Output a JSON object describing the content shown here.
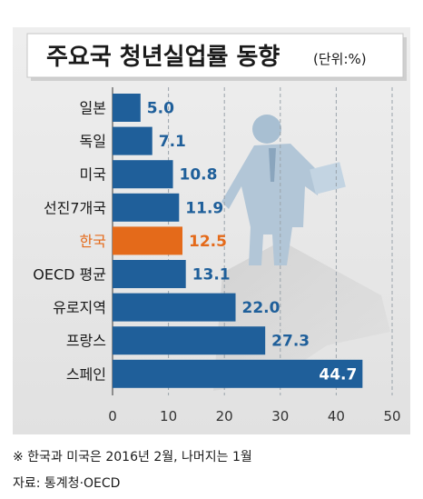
{
  "chart_data": {
    "type": "bar",
    "orientation": "horizontal",
    "title": "주요국 청년실업률 동향",
    "unit": "(단위:%)",
    "categories": [
      "일본",
      "독일",
      "미국",
      "선진7개국",
      "한국",
      "OECD 평균",
      "유로지역",
      "프랑스",
      "스페인"
    ],
    "values": [
      5.0,
      7.1,
      10.8,
      11.9,
      12.5,
      13.1,
      22.0,
      27.3,
      44.7
    ],
    "value_labels": [
      "5.0",
      "7.1",
      "10.8",
      "11.9",
      "12.5",
      "13.1",
      "22.0",
      "27.3",
      "44.7"
    ],
    "highlight_category": "한국",
    "xlim": [
      0,
      50
    ],
    "x_ticks": [
      0,
      10,
      20,
      30,
      40,
      50
    ],
    "x_tick_labels": [
      "0",
      "10",
      "20",
      "30",
      "40",
      "50"
    ],
    "grid": "dashed vertical",
    "colors": {
      "bar": "#1f5f9a",
      "highlight": "#e46a1a",
      "value_label": "#1f5f9a",
      "panel": "#e6e6e6",
      "figure": "#b7cad9"
    }
  },
  "notes": {
    "footnote": "※ 한국과 미국은 2016년 2월, 나머지는 1월",
    "source": "자료: 통계청·OECD"
  }
}
